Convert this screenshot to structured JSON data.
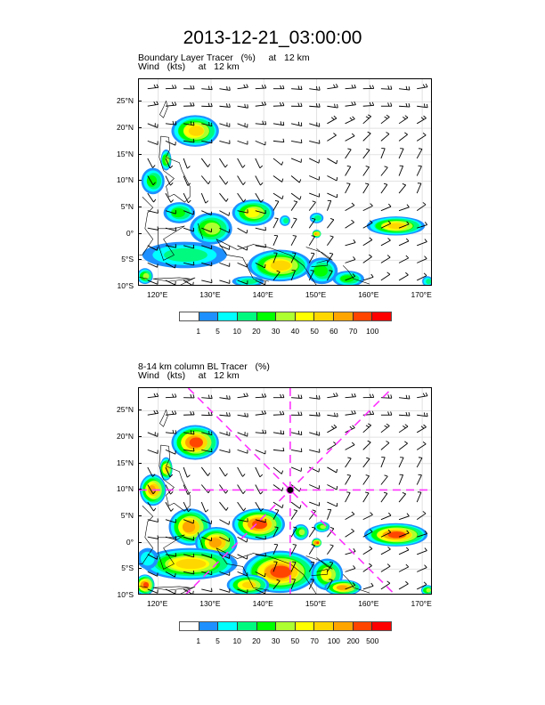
{
  "title": "2013-12-21_03:00:00",
  "panels": [
    {
      "subtitle1": "Boundary Layer Tracer   (%)     at   12 km",
      "subtitle2": "Wind   (kts)     at   12 km",
      "colorbar_labels": [
        "1",
        "5",
        "10",
        "20",
        "30",
        "40",
        "50",
        "60",
        "70",
        "100"
      ]
    },
    {
      "subtitle1": "8-14 km column BL Tracer   (%)",
      "subtitle2": "Wind   (kts)     at   12 km",
      "colorbar_labels": [
        "1",
        "5",
        "10",
        "20",
        "30",
        "50",
        "70",
        "100",
        "200",
        "500"
      ],
      "storm_center": {
        "lon": 145,
        "lat": 10
      }
    }
  ],
  "lat_ticks": [
    {
      "v": 25,
      "label": "25°N"
    },
    {
      "v": 20,
      "label": "20°N"
    },
    {
      "v": 15,
      "label": "15°N"
    },
    {
      "v": 10,
      "label": "10°N"
    },
    {
      "v": 5,
      "label": "5°N"
    },
    {
      "v": 0,
      "label": "0°"
    },
    {
      "v": -5,
      "label": "5°S"
    },
    {
      "v": -10,
      "label": "10°S"
    }
  ],
  "lon_ticks": [
    {
      "v": 120,
      "label": "120°E"
    },
    {
      "v": 130,
      "label": "130°E"
    },
    {
      "v": 140,
      "label": "140°E"
    },
    {
      "v": 150,
      "label": "150°E"
    },
    {
      "v": 160,
      "label": "160°E"
    },
    {
      "v": 170,
      "label": "170°E"
    }
  ],
  "colors": [
    "#ffffff",
    "#1e90ff",
    "#00ffff",
    "#00fa80",
    "#00ff00",
    "#adff2f",
    "#ffff00",
    "#ffd700",
    "#ffa500",
    "#ff4500",
    "#ff0000"
  ],
  "guide_color": "#ff33ff"
}
